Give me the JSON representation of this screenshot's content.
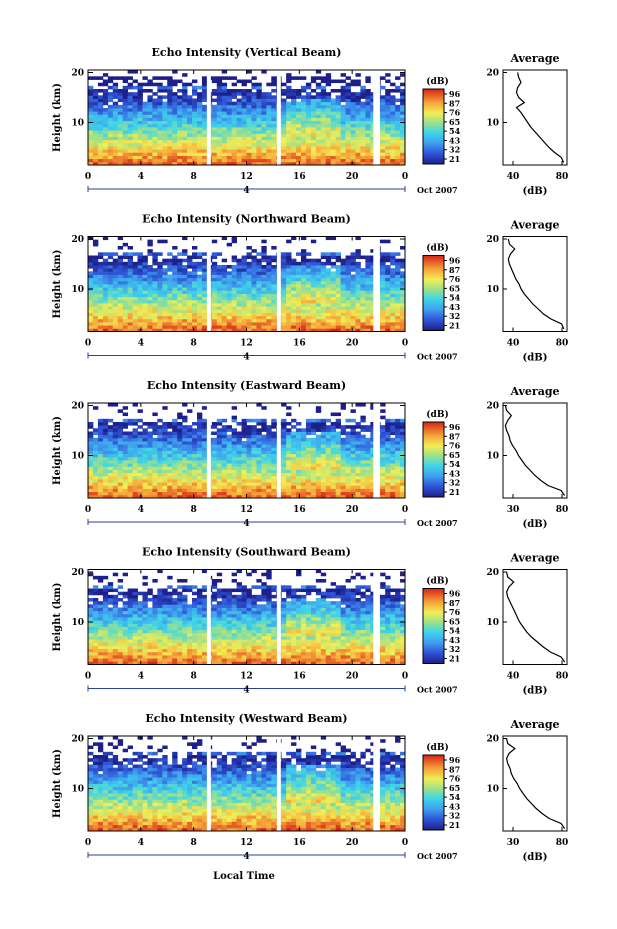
{
  "figure": {
    "xlabel": "Local Time"
  },
  "chart_data": [
    {
      "type": "heatmap",
      "title": "Echo Intensity (Vertical Beam)",
      "ylabel": "Height (km)",
      "x_ticks": [
        "0",
        "4",
        "8",
        "12",
        "16",
        "20",
        "0"
      ],
      "y_ticks": [
        "10",
        "20"
      ],
      "xlim": [
        0,
        24
      ],
      "ylim": [
        1.5,
        20.5
      ],
      "date_marker": "4",
      "date_label": "Oct 2007",
      "colorbar": {
        "unit": "(dB)",
        "ticks": [
          "96",
          "87",
          "76",
          "65",
          "54",
          "43",
          "32",
          "21"
        ]
      },
      "data_gaps_hours": [
        [
          9.0,
          9.3
        ],
        [
          14.3,
          14.6
        ],
        [
          21.6,
          22.1
        ]
      ],
      "profile": {
        "title": "Average",
        "xlabel": "(dB)",
        "x_ticks": [
          "40",
          "80"
        ],
        "y_ticks": [
          "10",
          "20"
        ],
        "xlim": [
          28,
          85
        ],
        "heights": [
          2,
          3,
          4,
          5,
          6,
          7,
          8,
          9,
          10,
          11,
          12,
          13,
          14,
          15,
          16,
          17,
          18,
          19,
          20
        ],
        "values": [
          82,
          80,
          74,
          69,
          65,
          61,
          57,
          53,
          50,
          47,
          44,
          40,
          47,
          42,
          40,
          41,
          44,
          42,
          41
        ]
      }
    },
    {
      "type": "heatmap",
      "title": "Echo Intensity (Northward Beam)",
      "ylabel": "Height (km)",
      "x_ticks": [
        "0",
        "4",
        "8",
        "12",
        "16",
        "20",
        "0"
      ],
      "y_ticks": [
        "10",
        "20"
      ],
      "xlim": [
        0,
        24
      ],
      "ylim": [
        1.5,
        20.5
      ],
      "date_marker": "4",
      "date_label": "Oct 2007",
      "colorbar": {
        "unit": "(dB)",
        "ticks": [
          "96",
          "87",
          "76",
          "65",
          "54",
          "43",
          "32",
          "21"
        ]
      },
      "data_gaps_hours": [
        [
          9.0,
          9.3
        ],
        [
          14.3,
          14.6
        ],
        [
          21.6,
          22.1
        ]
      ],
      "profile": {
        "title": "Average",
        "xlabel": "(dB)",
        "x_ticks": [
          "40",
          "80"
        ],
        "y_ticks": [
          "10",
          "20"
        ],
        "xlim": [
          25,
          85
        ],
        "heights": [
          2,
          3,
          4,
          5,
          6,
          7,
          8,
          9,
          10,
          11,
          12,
          13,
          14,
          15,
          16,
          17,
          18,
          19,
          20
        ],
        "values": [
          82,
          80,
          70,
          63,
          58,
          53,
          49,
          45,
          42,
          40,
          37,
          35,
          33,
          31,
          30,
          32,
          36,
          31,
          30
        ]
      }
    },
    {
      "type": "heatmap",
      "title": "Echo Intensity (Eastward Beam)",
      "ylabel": "Height (km)",
      "x_ticks": [
        "0",
        "4",
        "8",
        "12",
        "16",
        "20",
        "0"
      ],
      "y_ticks": [
        "10",
        "20"
      ],
      "xlim": [
        0,
        24
      ],
      "ylim": [
        1.5,
        20.5
      ],
      "date_marker": "4",
      "date_label": "Oct 2007",
      "colorbar": {
        "unit": "(dB)",
        "ticks": [
          "96",
          "87",
          "76",
          "65",
          "54",
          "43",
          "32",
          "21"
        ]
      },
      "data_gaps_hours": [
        [
          9.0,
          9.3
        ],
        [
          14.3,
          14.6
        ],
        [
          21.6,
          22.1
        ]
      ],
      "profile": {
        "title": "Average",
        "xlabel": "(dB)",
        "x_ticks": [
          "30",
          "80"
        ],
        "y_ticks": [
          "10",
          "20"
        ],
        "xlim": [
          28,
          82
        ],
        "heights": [
          2,
          3,
          4,
          5,
          6,
          7,
          8,
          9,
          10,
          11,
          12,
          13,
          14,
          15,
          16,
          17,
          18,
          19,
          20
        ],
        "values": [
          80,
          77,
          66,
          60,
          55,
          51,
          47,
          44,
          41,
          39,
          36,
          34,
          33,
          31,
          30,
          32,
          35,
          31,
          30
        ]
      }
    },
    {
      "type": "heatmap",
      "title": "Echo Intensity (Southward Beam)",
      "ylabel": "Height (km)",
      "x_ticks": [
        "0",
        "4",
        "8",
        "12",
        "16",
        "20",
        "0"
      ],
      "y_ticks": [
        "10",
        "20"
      ],
      "xlim": [
        0,
        24
      ],
      "ylim": [
        1.5,
        20.5
      ],
      "date_marker": "4",
      "date_label": "Oct 2007",
      "colorbar": {
        "unit": "(dB)",
        "ticks": [
          "96",
          "87",
          "76",
          "65",
          "54",
          "43",
          "32",
          "21"
        ]
      },
      "data_gaps_hours": [
        [
          9.0,
          9.3
        ],
        [
          14.3,
          14.6
        ],
        [
          21.6,
          22.1
        ]
      ],
      "profile": {
        "title": "Average",
        "xlabel": "(dB)",
        "x_ticks": [
          "40",
          "80"
        ],
        "y_ticks": [
          "10",
          "20"
        ],
        "xlim": [
          28,
          82
        ],
        "heights": [
          2,
          3,
          4,
          5,
          6,
          7,
          8,
          9,
          10,
          11,
          12,
          13,
          14,
          15,
          16,
          17,
          18,
          19,
          20
        ],
        "values": [
          80,
          77,
          68,
          62,
          57,
          52,
          48,
          45,
          42,
          40,
          38,
          36,
          34,
          32,
          31,
          33,
          37,
          32,
          31
        ]
      }
    },
    {
      "type": "heatmap",
      "title": "Echo Intensity (Westward Beam)",
      "ylabel": "Height (km)",
      "x_ticks": [
        "0",
        "4",
        "8",
        "12",
        "16",
        "20",
        "0"
      ],
      "y_ticks": [
        "10",
        "20"
      ],
      "xlim": [
        0,
        24
      ],
      "ylim": [
        1.5,
        20.5
      ],
      "date_marker": "4",
      "date_label": "Oct 2007",
      "colorbar": {
        "unit": "(dB)",
        "ticks": [
          "96",
          "87",
          "76",
          "65",
          "54",
          "43",
          "32",
          "21"
        ]
      },
      "data_gaps_hours": [
        [
          9.0,
          9.3
        ],
        [
          14.3,
          14.6
        ],
        [
          21.6,
          22.1
        ]
      ],
      "profile": {
        "title": "Average",
        "xlabel": "(dB)",
        "x_ticks": [
          "30",
          "80"
        ],
        "y_ticks": [
          "10",
          "20"
        ],
        "xlim": [
          28,
          82
        ],
        "heights": [
          2,
          3,
          4,
          5,
          6,
          7,
          8,
          9,
          10,
          11,
          12,
          13,
          14,
          15,
          16,
          17,
          18,
          19,
          20
        ],
        "values": [
          80,
          77,
          67,
          61,
          56,
          52,
          48,
          45,
          42,
          40,
          37,
          35,
          34,
          32,
          31,
          33,
          38,
          32,
          31
        ]
      }
    }
  ]
}
